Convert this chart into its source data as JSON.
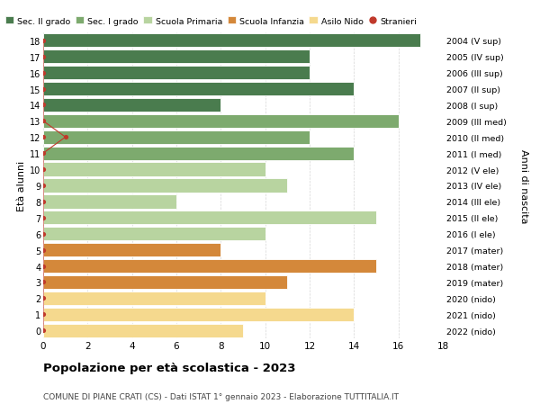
{
  "ages": [
    18,
    17,
    16,
    15,
    14,
    13,
    12,
    11,
    10,
    9,
    8,
    7,
    6,
    5,
    4,
    3,
    2,
    1,
    0
  ],
  "values": [
    17,
    12,
    12,
    14,
    8,
    16,
    12,
    14,
    10,
    11,
    6,
    15,
    10,
    8,
    15,
    11,
    10,
    14,
    9
  ],
  "right_labels": [
    "2004 (V sup)",
    "2005 (IV sup)",
    "2006 (III sup)",
    "2007 (II sup)",
    "2008 (I sup)",
    "2009 (III med)",
    "2010 (II med)",
    "2011 (I med)",
    "2012 (V ele)",
    "2013 (IV ele)",
    "2014 (III ele)",
    "2015 (II ele)",
    "2016 (I ele)",
    "2017 (mater)",
    "2018 (mater)",
    "2019 (mater)",
    "2020 (nido)",
    "2021 (nido)",
    "2022 (nido)"
  ],
  "bar_colors": [
    "#4a7c4e",
    "#4a7c4e",
    "#4a7c4e",
    "#4a7c4e",
    "#4a7c4e",
    "#7daa6e",
    "#7daa6e",
    "#7daa6e",
    "#b8d4a0",
    "#b8d4a0",
    "#b8d4a0",
    "#b8d4a0",
    "#b8d4a0",
    "#d4883a",
    "#d4883a",
    "#d4883a",
    "#f5d98e",
    "#f5d98e",
    "#f5d98e"
  ],
  "legend_labels": [
    "Sec. II grado",
    "Sec. I grado",
    "Scuola Primaria",
    "Scuola Infanzia",
    "Asilo Nido",
    "Stranieri"
  ],
  "legend_colors": [
    "#4a7c4e",
    "#7daa6e",
    "#b8d4a0",
    "#d4883a",
    "#f5d98e",
    "#c0392b"
  ],
  "title": "Popolazione per età scolastica - 2023",
  "subtitle": "COMUNE DI PIANE CRATI (CS) - Dati ISTAT 1° gennaio 2023 - Elaborazione TUTTITALIA.IT",
  "right_axis_label": "Anni di nascita",
  "ylabel": "Età alunni",
  "xlim": [
    0,
    18
  ],
  "ylim": [
    -0.5,
    18.5
  ],
  "xticks": [
    0,
    2,
    4,
    6,
    8,
    10,
    12,
    14,
    16,
    18
  ],
  "stranieri_line_x": [
    0,
    0,
    1,
    0,
    0,
    0,
    0,
    0,
    0,
    0,
    0,
    0,
    0,
    0,
    0,
    0,
    0,
    0,
    0
  ],
  "background_color": "#ffffff",
  "grid_color": "#cccccc"
}
